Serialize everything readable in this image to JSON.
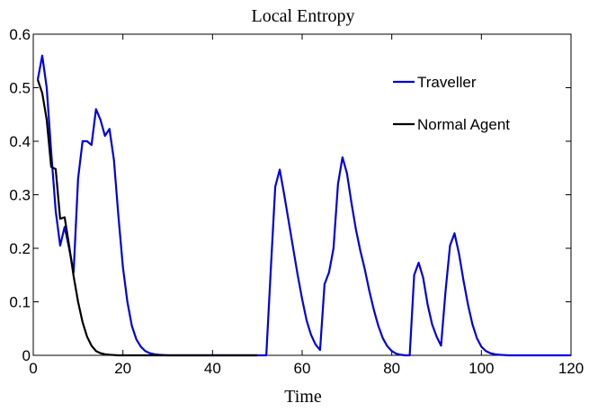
{
  "chart_data": {
    "type": "line",
    "title": "Local Entropy",
    "xlabel": "Time",
    "ylabel": "",
    "xlim": [
      0,
      120
    ],
    "ylim": [
      0,
      0.6
    ],
    "xticks": [
      0,
      20,
      40,
      60,
      80,
      100,
      120
    ],
    "xtick_labels": [
      "0",
      "20",
      "40",
      "60",
      "80",
      "100",
      "120"
    ],
    "yticks": [
      0,
      0.1,
      0.2,
      0.3,
      0.4,
      0.5,
      0.6
    ],
    "ytick_labels": [
      "0",
      "0.1",
      "0.2",
      "0.3",
      "0.4",
      "0.5",
      "0.6"
    ],
    "grid": false,
    "legend_position": "top-right",
    "series": [
      {
        "name": "Traveller",
        "color": "#0000e0",
        "x": [
          1,
          2,
          3,
          4,
          5,
          6,
          7,
          8,
          9,
          10,
          11,
          12,
          13,
          14,
          15,
          16,
          17,
          18,
          19,
          20,
          21,
          22,
          23,
          24,
          25,
          26,
          27,
          28,
          29,
          30,
          35,
          40,
          45,
          50,
          52,
          53,
          54,
          55,
          56,
          57,
          58,
          59,
          60,
          61,
          62,
          63,
          64,
          65,
          66,
          67,
          68,
          69,
          70,
          71,
          72,
          73,
          74,
          75,
          76,
          77,
          78,
          79,
          80,
          81,
          82,
          83,
          84,
          85,
          86,
          87,
          88,
          89,
          90,
          91,
          92,
          93,
          94,
          95,
          96,
          97,
          98,
          99,
          100,
          101,
          102,
          103,
          104,
          105,
          106,
          110,
          120
        ],
        "y": [
          0.515,
          0.56,
          0.5,
          0.38,
          0.27,
          0.205,
          0.24,
          0.2,
          0.155,
          0.33,
          0.4,
          0.4,
          0.393,
          0.46,
          0.44,
          0.41,
          0.423,
          0.365,
          0.26,
          0.165,
          0.1,
          0.055,
          0.03,
          0.016,
          0.008,
          0.004,
          0.002,
          0.001,
          0.0005,
          0,
          0,
          0,
          0,
          0,
          0,
          0.16,
          0.315,
          0.347,
          0.3,
          0.25,
          0.2,
          0.15,
          0.105,
          0.065,
          0.038,
          0.02,
          0.01,
          0.133,
          0.155,
          0.2,
          0.32,
          0.37,
          0.34,
          0.285,
          0.235,
          0.195,
          0.16,
          0.12,
          0.085,
          0.055,
          0.032,
          0.017,
          0.008,
          0.003,
          0.001,
          0,
          0,
          0.15,
          0.173,
          0.145,
          0.095,
          0.058,
          0.035,
          0.018,
          0.12,
          0.205,
          0.228,
          0.19,
          0.14,
          0.095,
          0.058,
          0.032,
          0.016,
          0.008,
          0.004,
          0.002,
          0.001,
          0.0005,
          0,
          0,
          0
        ]
      },
      {
        "name": "Normal Agent",
        "color": "#000000",
        "x": [
          1,
          2,
          3,
          4,
          5,
          6,
          7,
          8,
          9,
          10,
          11,
          12,
          13,
          14,
          15,
          16,
          17,
          18,
          19,
          20,
          25,
          30,
          40,
          50
        ],
        "y": [
          0.515,
          0.49,
          0.44,
          0.352,
          0.348,
          0.255,
          0.258,
          0.205,
          0.148,
          0.1,
          0.062,
          0.035,
          0.018,
          0.008,
          0.004,
          0.002,
          0.001,
          0.0005,
          0,
          0,
          0,
          0,
          0,
          0
        ]
      }
    ]
  }
}
